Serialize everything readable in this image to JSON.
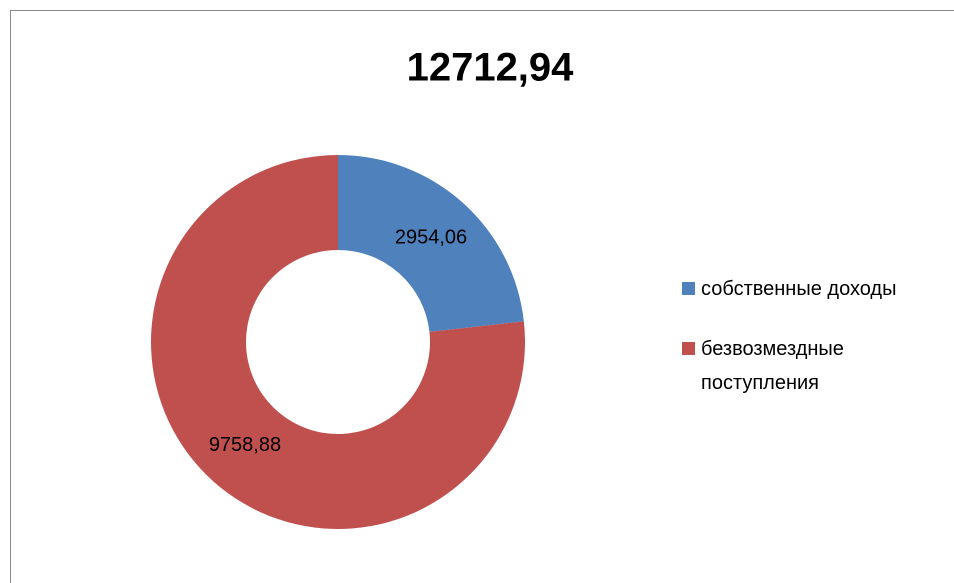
{
  "chart_data": {
    "type": "donut",
    "title": "12712,94",
    "categories": [
      "собственные доходы",
      "безвозмездные поступления"
    ],
    "values": [
      2954.06,
      9758.88
    ],
    "value_labels": [
      "2954,06",
      "9758,88"
    ],
    "colors": [
      "#4f81bd",
      "#c0504d"
    ],
    "legend": "right"
  }
}
